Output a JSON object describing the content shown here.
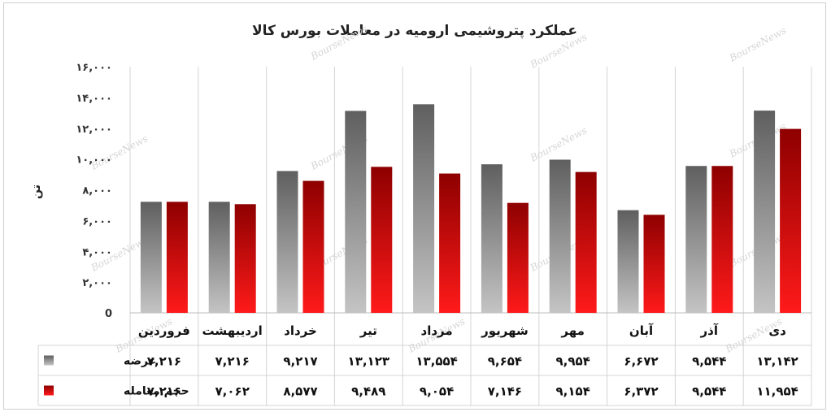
{
  "chart_data": {
    "type": "bar",
    "title": "عملکرد پتروشیمی ارومیه در معاملات بورس کالا",
    "ylabel": "تن",
    "ylim": [
      0,
      16000
    ],
    "yticks": [
      "0",
      "۲,۰۰۰",
      "۴,۰۰۰",
      "۶,۰۰۰",
      "۸,۰۰۰",
      "۱۰,۰۰۰",
      "۱۲,۰۰۰",
      "۱۴,۰۰۰",
      "۱۶,۰۰۰"
    ],
    "categories": [
      "فروردین",
      "اردیبهشت",
      "خرداد",
      "تیر",
      "مرداد",
      "شهریور",
      "مهر",
      "آبان",
      "آذر",
      "دی"
    ],
    "series": [
      {
        "name": "عرضه",
        "color": "#6e6e6e",
        "values": [
          7216,
          7216,
          9217,
          13123,
          13554,
          9654,
          9954,
          6672,
          9544,
          13142
        ],
        "labels": [
          "۷,۲۱۶",
          "۷,۲۱۶",
          "۹,۲۱۷",
          "۱۳,۱۲۳",
          "۱۳,۵۵۴",
          "۹,۶۵۴",
          "۹,۹۵۴",
          "۶,۶۷۲",
          "۹,۵۴۴",
          "۱۳,۱۴۲"
        ]
      },
      {
        "name": "حجم معامله",
        "color": "#b00000",
        "values": [
          7216,
          7062,
          8577,
          9489,
          9054,
          7146,
          9154,
          6372,
          9544,
          11954
        ],
        "labels": [
          "۷,۲۱۶",
          "۷,۰۶۲",
          "۸,۵۷۷",
          "۹,۴۸۹",
          "۹,۰۵۴",
          "۷,۱۴۶",
          "۹,۱۵۴",
          "۶,۳۷۲",
          "۹,۵۴۴",
          "۱۱,۹۵۴"
        ]
      }
    ],
    "grid": true,
    "legend": "data-table"
  },
  "watermark": "BourseNews"
}
